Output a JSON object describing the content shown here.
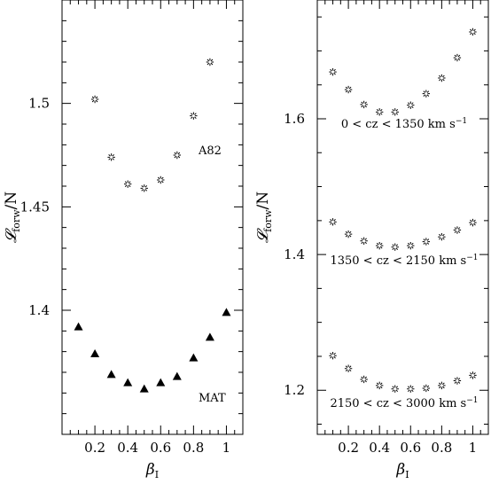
{
  "chart_data": [
    {
      "type": "scatter",
      "xlabel": "β_I",
      "ylabel": "𝓛_forw/N",
      "xlim": [
        0,
        1.1
      ],
      "ylim": [
        1.34,
        1.55
      ],
      "xticks": [
        0.2,
        0.4,
        0.6,
        0.8,
        1
      ],
      "xtick_labels": [
        "0.2",
        "0.4",
        "0.6",
        "0.8",
        "1"
      ],
      "yticks": [
        1.4,
        1.45,
        1.5
      ],
      "ytick_labels": [
        "1.4",
        "1.45",
        "1.5"
      ],
      "series": [
        {
          "name": "A82",
          "marker": "asterisk",
          "x": [
            0.2,
            0.3,
            0.4,
            0.5,
            0.6,
            0.7,
            0.8,
            0.9
          ],
          "y": [
            1.502,
            1.474,
            1.461,
            1.459,
            1.463,
            1.475,
            1.494,
            1.52
          ]
        },
        {
          "name": "MAT",
          "marker": "triangle",
          "x": [
            0.1,
            0.2,
            0.3,
            0.4,
            0.5,
            0.6,
            0.7,
            0.8,
            0.9,
            1.0
          ],
          "y": [
            1.392,
            1.379,
            1.369,
            1.365,
            1.362,
            1.365,
            1.368,
            1.377,
            1.387,
            1.399
          ]
        }
      ]
    },
    {
      "type": "scatter",
      "xlabel": "β_I",
      "ylabel": "𝓛_forw/N",
      "xlim": [
        0,
        1.1
      ],
      "ylim": [
        1.135,
        1.775
      ],
      "xticks": [
        0.2,
        0.4,
        0.6,
        0.8,
        1
      ],
      "xtick_labels": [
        "0.2",
        "0.4",
        "0.6",
        "0.8",
        "1"
      ],
      "yticks": [
        1.2,
        1.4,
        1.6
      ],
      "ytick_labels": [
        "1.2",
        "1.4",
        "1.6"
      ],
      "series": [
        {
          "name": "0 < cz < 1350 km s⁻¹",
          "marker": "asterisk",
          "x": [
            0.1,
            0.2,
            0.3,
            0.4,
            0.5,
            0.6,
            0.7,
            0.8,
            0.9,
            1.0
          ],
          "y": [
            1.669,
            1.643,
            1.621,
            1.61,
            1.61,
            1.62,
            1.637,
            1.66,
            1.69,
            1.728
          ]
        },
        {
          "name": "1350 < cz < 2150 km s⁻¹",
          "marker": "asterisk",
          "x": [
            0.1,
            0.2,
            0.3,
            0.4,
            0.5,
            0.6,
            0.7,
            0.8,
            0.9,
            1.0
          ],
          "y": [
            1.448,
            1.43,
            1.42,
            1.413,
            1.411,
            1.413,
            1.419,
            1.426,
            1.436,
            1.447
          ]
        },
        {
          "name": "2150 < cz < 3000 km s⁻¹",
          "marker": "asterisk",
          "x": [
            0.1,
            0.2,
            0.3,
            0.4,
            0.5,
            0.6,
            0.7,
            0.8,
            0.9,
            1.0
          ],
          "y": [
            1.251,
            1.232,
            1.216,
            1.207,
            1.202,
            1.202,
            1.203,
            1.207,
            1.214,
            1.222
          ]
        }
      ]
    }
  ]
}
